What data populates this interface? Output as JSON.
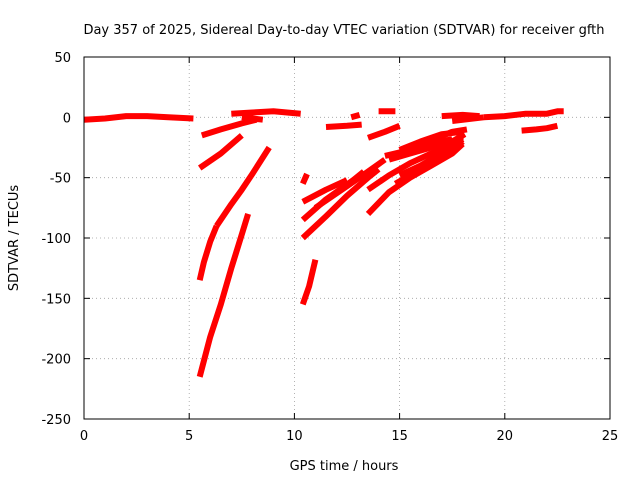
{
  "chart_data": {
    "type": "line",
    "title": "Day 357 of 2025, Sidereal Day-to-day VTEC variation (SDTVAR) for receiver gfth",
    "xlabel": "GPS time / hours",
    "ylabel": "SDTVAR / TECUs",
    "xlim": [
      0,
      25
    ],
    "ylim": [
      -250,
      50
    ],
    "xticks": [
      0,
      5,
      10,
      15,
      20,
      25
    ],
    "yticks": [
      50,
      0,
      -50,
      -100,
      -150,
      -200,
      -250
    ],
    "grid": true,
    "legend": "none",
    "series_color": "#ff0000",
    "series": [
      {
        "points": [
          [
            0.0,
            -2
          ],
          [
            1.0,
            -1
          ],
          [
            2.0,
            1
          ],
          [
            3.0,
            1
          ],
          [
            4.0,
            0
          ],
          [
            5.2,
            -1
          ]
        ]
      },
      {
        "points": [
          [
            5.6,
            -15
          ],
          [
            6.5,
            -10
          ],
          [
            7.5,
            -5
          ],
          [
            8.2,
            -2
          ]
        ]
      },
      {
        "points": [
          [
            7.0,
            3
          ],
          [
            8.0,
            4
          ],
          [
            9.0,
            5
          ],
          [
            10.3,
            3
          ]
        ]
      },
      {
        "points": [
          [
            7.5,
            0
          ],
          [
            8.5,
            -2
          ]
        ]
      },
      {
        "points": [
          [
            5.5,
            -42
          ],
          [
            6.5,
            -30
          ],
          [
            7.5,
            -15
          ]
        ]
      },
      {
        "points": [
          [
            5.5,
            -135
          ],
          [
            5.7,
            -120
          ],
          [
            6.0,
            -103
          ],
          [
            6.3,
            -90
          ]
        ]
      },
      {
        "points": [
          [
            5.5,
            -215
          ],
          [
            6.0,
            -182
          ],
          [
            6.5,
            -155
          ],
          [
            7.0,
            -125
          ],
          [
            7.5,
            -97
          ],
          [
            7.8,
            -80
          ]
        ]
      },
      {
        "points": [
          [
            6.3,
            -90
          ],
          [
            7.0,
            -72
          ],
          [
            7.5,
            -60
          ],
          [
            8.0,
            -47
          ],
          [
            8.8,
            -25
          ]
        ]
      },
      {
        "points": [
          [
            10.4,
            -155
          ],
          [
            10.7,
            -140
          ],
          [
            11.0,
            -118
          ]
        ]
      },
      {
        "points": [
          [
            10.4,
            -55
          ],
          [
            10.6,
            -47
          ]
        ]
      },
      {
        "points": [
          [
            10.4,
            -70
          ],
          [
            11.5,
            -60
          ],
          [
            12.5,
            -52
          ]
        ]
      },
      {
        "points": [
          [
            10.4,
            -85
          ],
          [
            11.5,
            -68
          ],
          [
            12.8,
            -52
          ],
          [
            13.3,
            -45
          ]
        ]
      },
      {
        "points": [
          [
            10.4,
            -100
          ],
          [
            11.5,
            -82
          ],
          [
            12.5,
            -65
          ],
          [
            13.5,
            -50
          ],
          [
            14.0,
            -43
          ]
        ]
      },
      {
        "points": [
          [
            11.0,
            -75
          ],
          [
            12.5,
            -57
          ],
          [
            13.5,
            -45
          ],
          [
            14.3,
            -35
          ]
        ]
      },
      {
        "points": [
          [
            11.5,
            -8
          ],
          [
            12.5,
            -7
          ],
          [
            13.2,
            -6
          ]
        ]
      },
      {
        "points": [
          [
            12.7,
            0
          ],
          [
            13.1,
            2
          ]
        ]
      },
      {
        "points": [
          [
            13.5,
            -17
          ],
          [
            14.3,
            -12
          ],
          [
            15.0,
            -7
          ]
        ]
      },
      {
        "points": [
          [
            14.0,
            5
          ],
          [
            14.8,
            5
          ]
        ]
      },
      {
        "points": [
          [
            13.5,
            -80
          ],
          [
            14.5,
            -62
          ],
          [
            15.5,
            -50
          ],
          [
            16.5,
            -40
          ],
          [
            17.5,
            -30
          ],
          [
            18.0,
            -22
          ]
        ]
      },
      {
        "points": [
          [
            13.5,
            -60
          ],
          [
            14.5,
            -48
          ],
          [
            15.5,
            -38
          ],
          [
            16.5,
            -30
          ],
          [
            17.3,
            -25
          ]
        ]
      },
      {
        "points": [
          [
            14.8,
            -55
          ],
          [
            15.5,
            -48
          ],
          [
            16.5,
            -38
          ],
          [
            17.5,
            -28
          ],
          [
            18.0,
            -20
          ]
        ]
      },
      {
        "points": [
          [
            15.0,
            -48
          ],
          [
            16.0,
            -40
          ],
          [
            17.0,
            -30
          ],
          [
            18.0,
            -18
          ]
        ]
      },
      {
        "points": [
          [
            14.3,
            -32
          ],
          [
            15.5,
            -27
          ],
          [
            16.5,
            -22
          ],
          [
            17.5,
            -18
          ]
        ]
      },
      {
        "points": [
          [
            14.5,
            -35
          ],
          [
            15.5,
            -30
          ],
          [
            16.5,
            -25
          ],
          [
            17.5,
            -20
          ],
          [
            18.0,
            -16
          ]
        ]
      },
      {
        "points": [
          [
            15.0,
            -27
          ],
          [
            16.0,
            -20
          ],
          [
            17.0,
            -14
          ],
          [
            18.0,
            -12
          ]
        ]
      },
      {
        "points": [
          [
            16.0,
            -24
          ],
          [
            16.8,
            -17
          ],
          [
            17.5,
            -12
          ],
          [
            18.2,
            -10
          ]
        ]
      },
      {
        "points": [
          [
            16.8,
            -30
          ],
          [
            17.5,
            -20
          ],
          [
            18.1,
            -14
          ]
        ]
      },
      {
        "points": [
          [
            17.0,
            1
          ],
          [
            18.0,
            2
          ],
          [
            18.8,
            1
          ]
        ]
      },
      {
        "points": [
          [
            17.5,
            -3
          ],
          [
            18.5,
            -1
          ],
          [
            19.0,
            0
          ]
        ]
      },
      {
        "points": [
          [
            19.0,
            0
          ],
          [
            20.0,
            1
          ],
          [
            21.0,
            3
          ],
          [
            22.0,
            3
          ],
          [
            22.5,
            5
          ],
          [
            22.8,
            5
          ]
        ]
      },
      {
        "points": [
          [
            20.8,
            -11
          ],
          [
            21.5,
            -10
          ],
          [
            22.0,
            -9
          ],
          [
            22.5,
            -7
          ]
        ]
      }
    ]
  }
}
